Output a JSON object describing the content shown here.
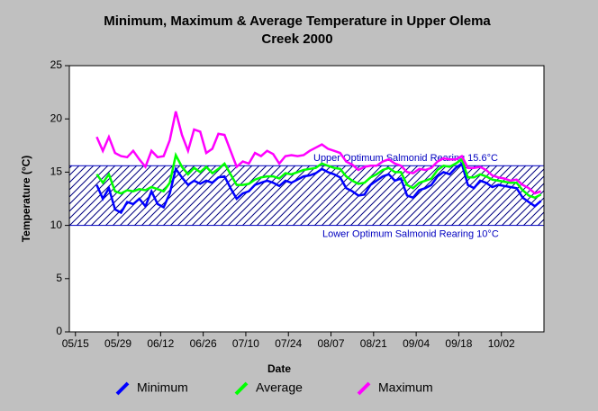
{
  "chart_data": {
    "type": "line",
    "title": [
      "Minimum, Maximum & Average Temperature in Upper Olema",
      "Creek 2000"
    ],
    "x_label": "Date",
    "y_label": "Temperature (°C)",
    "xlim": [
      -2,
      154
    ],
    "xticks": [
      {
        "value": 0,
        "label": "05/15"
      },
      {
        "value": 14,
        "label": "05/29"
      },
      {
        "value": 28,
        "label": "06/12"
      },
      {
        "value": 42,
        "label": "06/26"
      },
      {
        "value": 56,
        "label": "07/10"
      },
      {
        "value": 70,
        "label": "07/24"
      },
      {
        "value": 84,
        "label": "08/07"
      },
      {
        "value": 98,
        "label": "08/21"
      },
      {
        "value": 112,
        "label": "09/04"
      },
      {
        "value": 126,
        "label": "09/18"
      },
      {
        "value": 140,
        "label": "10/02"
      }
    ],
    "ylim": [
      0,
      25
    ],
    "yticks": [
      0,
      5,
      10,
      15,
      20,
      25
    ],
    "band": {
      "lower": 10,
      "upper": 15.6,
      "color": "#0000c0",
      "upper_label": "Upper Optimum Salmonid Rearing 15.6°C",
      "lower_label": "Lower Optimum Salmonid Rearing 10°C"
    },
    "x": [
      7,
      9,
      11,
      13,
      15,
      17,
      19,
      21,
      23,
      25,
      27,
      29,
      31,
      33,
      35,
      37,
      39,
      41,
      43,
      45,
      47,
      49,
      51,
      53,
      55,
      57,
      59,
      61,
      63,
      65,
      67,
      69,
      71,
      73,
      75,
      77,
      79,
      81,
      83,
      85,
      87,
      89,
      91,
      93,
      95,
      97,
      99,
      101,
      103,
      105,
      107,
      109,
      111,
      113,
      115,
      117,
      119,
      121,
      123,
      125,
      127,
      129,
      131,
      133,
      135,
      137,
      139,
      141,
      143,
      145,
      147,
      149,
      151,
      153
    ],
    "series": [
      {
        "name": "Minimum",
        "color": "#0000ff",
        "values": [
          13.8,
          12.5,
          13.5,
          11.5,
          11.2,
          12.2,
          12.0,
          12.5,
          11.8,
          13.2,
          12.0,
          11.7,
          13.0,
          15.3,
          14.5,
          13.8,
          14.2,
          13.9,
          14.2,
          14.0,
          14.5,
          14.6,
          13.5,
          12.5,
          13.0,
          13.2,
          13.8,
          14.0,
          14.2,
          14.0,
          13.7,
          14.2,
          14.0,
          14.3,
          14.6,
          14.7,
          14.9,
          15.3,
          15.0,
          14.8,
          14.5,
          13.5,
          13.2,
          12.8,
          12.9,
          13.8,
          14.2,
          14.6,
          14.8,
          14.2,
          14.4,
          12.8,
          12.6,
          13.3,
          13.5,
          13.8,
          14.6,
          15.0,
          14.8,
          15.4,
          15.8,
          13.8,
          13.5,
          14.2,
          14.0,
          13.6,
          13.8,
          13.7,
          13.6,
          13.5,
          12.6,
          12.2,
          11.8,
          12.3
        ]
      },
      {
        "name": "Average",
        "color": "#00ff00",
        "values": [
          14.8,
          14.0,
          14.8,
          13.2,
          13.0,
          13.3,
          13.2,
          13.4,
          13.3,
          13.6,
          13.4,
          13.2,
          14.0,
          16.6,
          15.5,
          14.8,
          15.4,
          15.0,
          15.5,
          14.9,
          15.3,
          15.8,
          14.8,
          13.8,
          13.8,
          13.9,
          14.3,
          14.5,
          14.6,
          14.6,
          14.4,
          14.9,
          14.8,
          15.0,
          15.2,
          15.3,
          15.4,
          15.8,
          15.6,
          15.4,
          15.3,
          14.6,
          14.2,
          13.9,
          14.0,
          14.5,
          14.8,
          15.2,
          15.4,
          15.0,
          15.0,
          13.8,
          13.5,
          14.0,
          14.2,
          14.4,
          15.2,
          15.6,
          15.5,
          15.8,
          16.2,
          14.5,
          14.5,
          14.8,
          14.6,
          14.3,
          14.2,
          14.1,
          14.0,
          14.0,
          13.3,
          12.8,
          12.6,
          12.9
        ]
      },
      {
        "name": "Maximum",
        "color": "#ff00ff",
        "values": [
          18.3,
          17.0,
          18.3,
          16.8,
          16.5,
          16.4,
          17.0,
          16.2,
          15.5,
          17.0,
          16.4,
          16.5,
          18.0,
          20.7,
          18.5,
          17.0,
          19.0,
          18.8,
          16.8,
          17.2,
          18.6,
          18.5,
          17.0,
          15.5,
          16.0,
          15.8,
          16.8,
          16.5,
          17.0,
          16.7,
          15.8,
          16.5,
          16.6,
          16.5,
          16.6,
          17.0,
          17.3,
          17.6,
          17.2,
          17.0,
          16.8,
          16.0,
          15.7,
          15.2,
          15.5,
          15.6,
          15.6,
          16.0,
          16.2,
          15.8,
          15.6,
          15.0,
          14.9,
          15.3,
          15.2,
          15.4,
          16.0,
          16.3,
          16.2,
          16.2,
          16.5,
          15.4,
          15.4,
          15.5,
          15.2,
          14.7,
          14.5,
          14.4,
          14.2,
          14.3,
          13.8,
          13.5,
          13.0,
          13.2
        ]
      }
    ]
  }
}
